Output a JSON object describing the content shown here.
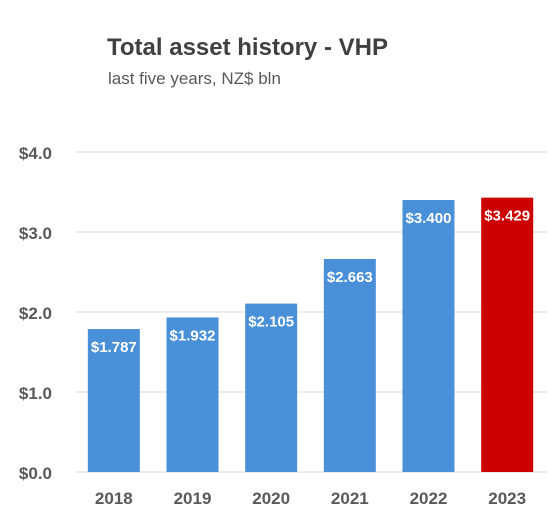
{
  "chart_data": {
    "type": "bar",
    "title": "Total asset history - VHP",
    "subtitle": "last five years, NZ$ bln",
    "categories": [
      "2018",
      "2019",
      "2020",
      "2021",
      "2022",
      "2023"
    ],
    "values": [
      1.787,
      1.932,
      2.105,
      2.663,
      3.4,
      3.429
    ],
    "data_labels": [
      "$1.787",
      "$1.932",
      "$2.105",
      "$2.663",
      "$3.400",
      "$3.429"
    ],
    "ytick_labels": [
      "$0.0",
      "$1.0",
      "$2.0",
      "$3.0",
      "$4.0"
    ],
    "yticks": [
      0,
      1,
      2,
      3,
      4
    ],
    "ylim": [
      0,
      4
    ],
    "xlabel": "",
    "ylabel": "",
    "grid": true,
    "legend": "none",
    "colors": {
      "default_bar": "#4a90d9",
      "highlight_bar": "#cc0000",
      "gridline": "#d9d9d9",
      "axis_text": "#595959",
      "label_text": "#ffffff"
    },
    "highlight_index": 5
  }
}
